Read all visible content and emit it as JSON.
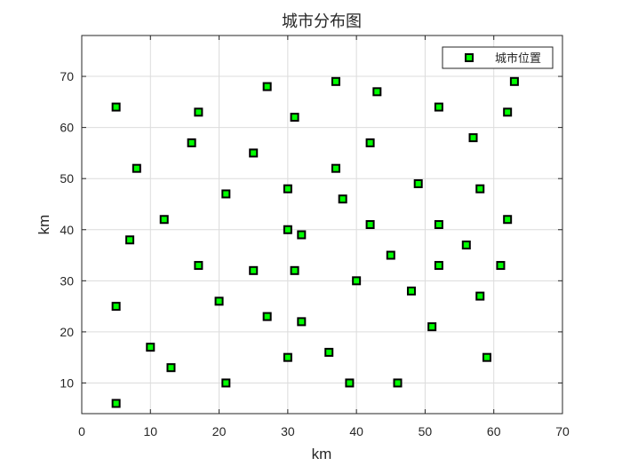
{
  "chart_data": {
    "type": "scatter",
    "title": "城市分布图",
    "xlabel": "km",
    "ylabel": "km",
    "xlim": [
      0,
      70
    ],
    "ylim": [
      4,
      78
    ],
    "xticks": [
      0,
      10,
      20,
      30,
      40,
      50,
      60,
      70
    ],
    "yticks": [
      10,
      20,
      30,
      40,
      50,
      60,
      70
    ],
    "grid": true,
    "legend_position": "top-right",
    "marker_color": "#00ff00",
    "marker_edge_color": "#000000",
    "series": [
      {
        "name": "城市位置",
        "marker": "square",
        "points": [
          [
            5,
            64
          ],
          [
            17,
            63
          ],
          [
            27,
            68
          ],
          [
            37,
            69
          ],
          [
            43,
            67
          ],
          [
            52,
            64
          ],
          [
            63,
            69
          ],
          [
            62,
            63
          ],
          [
            31,
            62
          ],
          [
            57,
            58
          ],
          [
            42,
            57
          ],
          [
            16,
            57
          ],
          [
            25,
            55
          ],
          [
            8,
            52
          ],
          [
            37,
            52
          ],
          [
            49,
            49
          ],
          [
            58,
            48
          ],
          [
            30,
            48
          ],
          [
            21,
            47
          ],
          [
            38,
            46
          ],
          [
            12,
            42
          ],
          [
            62,
            42
          ],
          [
            52,
            41
          ],
          [
            42,
            41
          ],
          [
            30,
            40
          ],
          [
            32,
            39
          ],
          [
            7,
            38
          ],
          [
            56,
            37
          ],
          [
            45,
            35
          ],
          [
            17,
            33
          ],
          [
            52,
            33
          ],
          [
            61,
            33
          ],
          [
            25,
            32
          ],
          [
            31,
            32
          ],
          [
            40,
            30
          ],
          [
            48,
            28
          ],
          [
            58,
            27
          ],
          [
            20,
            26
          ],
          [
            5,
            25
          ],
          [
            27,
            23
          ],
          [
            32,
            22
          ],
          [
            51,
            21
          ],
          [
            10,
            17
          ],
          [
            36,
            16
          ],
          [
            30,
            15
          ],
          [
            59,
            15
          ],
          [
            13,
            13
          ],
          [
            21,
            10
          ],
          [
            39,
            10
          ],
          [
            46,
            10
          ],
          [
            5,
            6
          ]
        ]
      }
    ]
  }
}
